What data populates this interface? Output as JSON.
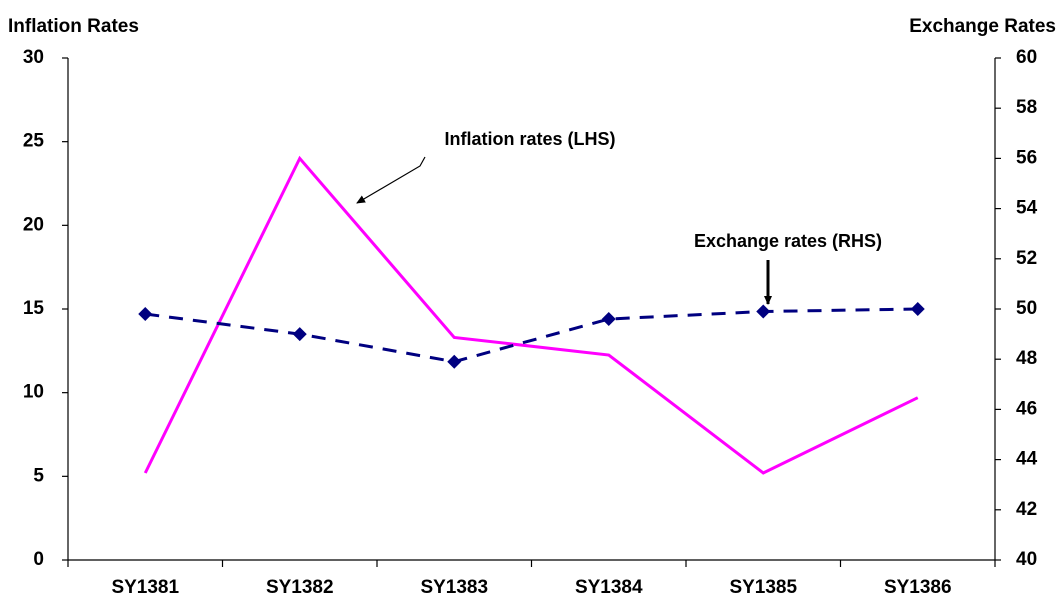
{
  "chart_data": {
    "type": "line",
    "y_label": "Inflation Rates",
    "y2_label": "Exchange Rates",
    "categories": [
      "SY1381",
      "SY1382",
      "SY1383",
      "SY1384",
      "SY1385",
      "SY1386"
    ],
    "series": [
      {
        "name": "Inflation rates (LHS)",
        "color": "#ff00ff",
        "values": [
          5.2,
          24.0,
          13.3,
          12.25,
          5.2,
          9.7
        ]
      },
      {
        "name": "Exchange rates (RHS)",
        "color": "#000080",
        "axis": "y2",
        "values": [
          49.8,
          49.0,
          47.9,
          49.6,
          49.9,
          50.0
        ]
      }
    ],
    "ylim": [
      0,
      30
    ],
    "yticks": [
      0,
      5,
      10,
      15,
      20,
      25,
      30
    ],
    "y2lim": [
      40,
      60
    ],
    "y2ticks": [
      40,
      42,
      44,
      46,
      48,
      50,
      52,
      54,
      56,
      58,
      60
    ],
    "grid": false
  }
}
